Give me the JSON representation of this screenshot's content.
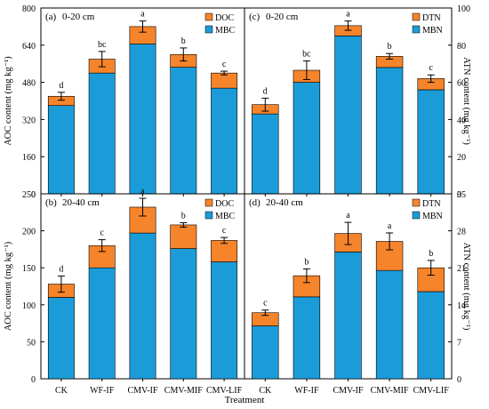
{
  "figure": {
    "x_title": "Treatment"
  },
  "chart_data": [
    {
      "type": "bar",
      "stacked": true,
      "panel_label": "(a)",
      "depth": "0-20 cm",
      "ylabel": "AOC content (mg kg⁻¹)",
      "y_axis_side": "left",
      "ylim": [
        0,
        800
      ],
      "yticks": [
        0,
        160,
        320,
        480,
        640,
        800
      ],
      "categories": [
        "CK",
        "WF-IF",
        "CMV-IF",
        "CMV-MIF",
        "CMV-LIF"
      ],
      "series": [
        {
          "name": "MBC",
          "color": "#1B9CD9",
          "values": [
            380,
            520,
            645,
            545,
            455
          ]
        },
        {
          "name": "DOC",
          "color": "#F5842B",
          "values": [
            40,
            60,
            75,
            55,
            65
          ]
        }
      ],
      "error": [
        17,
        33,
        24,
        28,
        8
      ],
      "letters": [
        "d",
        "bc",
        "a",
        "b",
        "c"
      ],
      "show_xticklabels": false,
      "legend_position": "top-right"
    },
    {
      "type": "bar",
      "stacked": true,
      "panel_label": "(c)",
      "depth": "0-20 cm",
      "ylabel": "ATN content (mg kg⁻¹)",
      "y_axis_side": "right",
      "ylim": [
        0,
        100
      ],
      "yticks": [
        0,
        20,
        40,
        60,
        80,
        100
      ],
      "categories": [
        "CK",
        "WF-IF",
        "CMV-IF",
        "CMV-MIF",
        "CMV-LIF"
      ],
      "series": [
        {
          "name": "MBN",
          "color": "#1B9CD9",
          "values": [
            43,
            60,
            85,
            68,
            56
          ]
        },
        {
          "name": "DTN",
          "color": "#F5842B",
          "values": [
            5,
            6.5,
            5.5,
            6,
            6
          ]
        }
      ],
      "error": [
        3.5,
        5,
        2.5,
        1.5,
        2
      ],
      "letters": [
        "d",
        "bc",
        "a",
        "b",
        "c"
      ],
      "show_xticklabels": false,
      "legend_position": "top-right"
    },
    {
      "type": "bar",
      "stacked": true,
      "panel_label": "(b)",
      "depth": "20-40 cm",
      "ylabel": "AOC content (mg kg⁻¹)",
      "y_axis_side": "left",
      "ylim": [
        0,
        250
      ],
      "yticks": [
        0,
        50,
        100,
        150,
        200,
        250
      ],
      "categories": [
        "CK",
        "WF-IF",
        "CMV-IF",
        "CMV-MIF",
        "CMV-LIF"
      ],
      "series": [
        {
          "name": "MBC",
          "color": "#1B9CD9",
          "values": [
            110,
            150,
            197,
            176,
            158
          ]
        },
        {
          "name": "DOC",
          "color": "#F5842B",
          "values": [
            18,
            30,
            35,
            32,
            29
          ]
        }
      ],
      "error": [
        11,
        8,
        12,
        3,
        4
      ],
      "letters": [
        "d",
        "c",
        "a",
        "b",
        "c"
      ],
      "show_xticklabels": true,
      "legend_position": "top-right"
    },
    {
      "type": "bar",
      "stacked": true,
      "panel_label": "(d)",
      "depth": "20-40 cm",
      "ylabel": "ATN content (mg kg⁻¹)",
      "y_axis_side": "right",
      "ylim": [
        0,
        35
      ],
      "yticks": [
        0,
        7,
        14,
        21,
        28,
        35
      ],
      "categories": [
        "CK",
        "WF-IF",
        "CMV-IF",
        "CMV-MIF",
        "CMV-LIF"
      ],
      "series": [
        {
          "name": "MBN",
          "color": "#1B9CD9",
          "values": [
            10,
            15.5,
            24,
            20.5,
            16.5
          ]
        },
        {
          "name": "DTN",
          "color": "#F5842B",
          "values": [
            2.5,
            4,
            3.5,
            5.5,
            4.5
          ]
        }
      ],
      "error": [
        0.5,
        1.3,
        2.1,
        1.6,
        1.4
      ],
      "letters": [
        "c",
        "b",
        "a",
        "a",
        "b"
      ],
      "show_xticklabels": true,
      "legend_position": "top-right"
    }
  ]
}
